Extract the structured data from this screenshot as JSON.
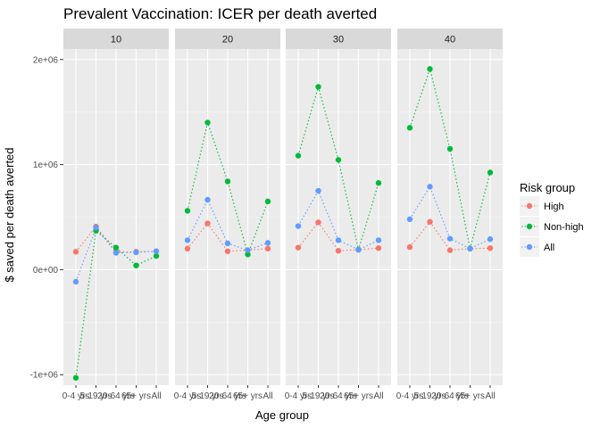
{
  "chart_data": {
    "type": "line",
    "title": "Prevalent Vaccination: ICER per death averted",
    "xlabel": "Age group",
    "ylabel": "$ saved per death averted",
    "categories": [
      "0-4 yrs",
      "5-19 yrs",
      "20-64 yrs",
      "65+ yrs",
      "All"
    ],
    "y_ticks": [
      -1000000,
      0,
      1000000,
      2000000
    ],
    "y_tick_labels": [
      "-1e+06",
      "0e+00",
      "1e+06",
      "2e+06"
    ],
    "ylim": [
      -1100000,
      2100000
    ],
    "legend": {
      "title": "Risk group",
      "position": "right"
    },
    "grid": true,
    "facets": [
      {
        "label": "10",
        "series": [
          {
            "name": "High",
            "color": "#F8766D",
            "values": [
              170000,
              410000,
              170000,
              170000,
              175000
            ]
          },
          {
            "name": "Non-high",
            "color": "#00BA38",
            "values": [
              -1030000,
              370000,
              210000,
              40000,
              130000
            ]
          },
          {
            "name": "All",
            "color": "#619CFF",
            "values": [
              -115000,
              400000,
              160000,
              165000,
              175000
            ]
          }
        ]
      },
      {
        "label": "20",
        "series": [
          {
            "name": "High",
            "color": "#F8766D",
            "values": [
              200000,
              440000,
              175000,
              185000,
              200000
            ]
          },
          {
            "name": "Non-high",
            "color": "#00BA38",
            "values": [
              560000,
              1400000,
              840000,
              145000,
              650000
            ]
          },
          {
            "name": "All",
            "color": "#619CFF",
            "values": [
              280000,
              665000,
              250000,
              185000,
              255000
            ]
          }
        ]
      },
      {
        "label": "30",
        "series": [
          {
            "name": "High",
            "color": "#F8766D",
            "values": [
              210000,
              450000,
              180000,
              190000,
              205000
            ]
          },
          {
            "name": "Non-high",
            "color": "#00BA38",
            "values": [
              1085000,
              1740000,
              1045000,
              190000,
              825000
            ]
          },
          {
            "name": "All",
            "color": "#619CFF",
            "values": [
              415000,
              750000,
              280000,
              190000,
              280000
            ]
          }
        ]
      },
      {
        "label": "40",
        "series": [
          {
            "name": "High",
            "color": "#F8766D",
            "values": [
              215000,
              455000,
              185000,
              200000,
              205000
            ]
          },
          {
            "name": "Non-high",
            "color": "#00BA38",
            "values": [
              1350000,
              1910000,
              1150000,
              200000,
              925000
            ]
          },
          {
            "name": "All",
            "color": "#619CFF",
            "values": [
              480000,
              790000,
              295000,
              200000,
              290000
            ]
          }
        ]
      }
    ]
  }
}
